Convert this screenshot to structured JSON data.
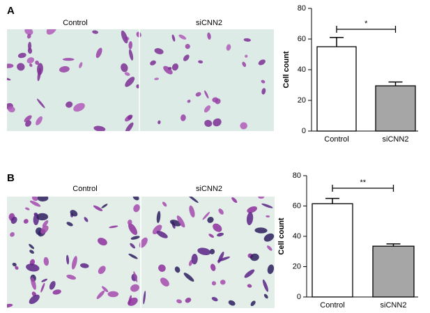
{
  "panels": [
    {
      "label": "A",
      "images": [
        "Control",
        "siCNN2"
      ]
    },
    {
      "label": "B",
      "images": [
        "Control",
        "siCNN2"
      ]
    }
  ],
  "chart_data": [
    {
      "type": "bar",
      "ylabel": "Cell count",
      "categories": [
        "Control",
        "siCNN2"
      ],
      "values": [
        55,
        29.5
      ],
      "errors": [
        6,
        2.5
      ],
      "colors": [
        "#ffffff",
        "#a6a6a6"
      ],
      "ylim": [
        0,
        80
      ],
      "yticks": [
        0,
        20,
        40,
        60,
        80
      ],
      "annotation": "*"
    },
    {
      "type": "bar",
      "ylabel": "Cell count",
      "categories": [
        "Control",
        "siCNN2"
      ],
      "values": [
        61.5,
        33.5
      ],
      "errors": [
        3.5,
        1.5
      ],
      "colors": [
        "#ffffff",
        "#a6a6a6"
      ],
      "ylim": [
        0,
        80
      ],
      "yticks": [
        0,
        20,
        40,
        60,
        80
      ],
      "annotation": "**"
    }
  ]
}
